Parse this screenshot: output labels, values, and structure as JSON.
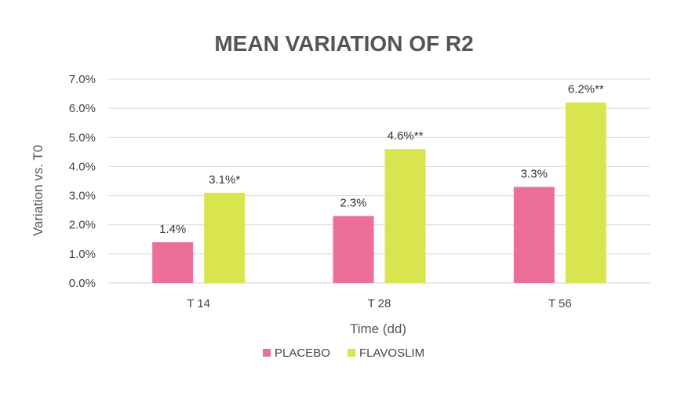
{
  "chart_data": {
    "type": "bar",
    "title": "MEAN VARIATION OF R2",
    "xlabel": "Time (dd)",
    "ylabel": "Variation vs. T0",
    "categories": [
      "T 14",
      "T 28",
      "T 56"
    ],
    "series": [
      {
        "name": "PLACEBO",
        "color": "#ec6f98",
        "values": [
          1.4,
          2.3,
          3.3
        ],
        "labels": [
          "1.4%",
          "2.3%",
          "3.3%"
        ]
      },
      {
        "name": "FLAVOSLIM",
        "color": "#d8e54f",
        "values": [
          3.1,
          4.6,
          6.2
        ],
        "labels": [
          "3.1%*",
          "4.6%**",
          "6.2%**"
        ]
      }
    ],
    "ylim": [
      0,
      7
    ],
    "yticks": [
      0,
      1,
      2,
      3,
      4,
      5,
      6,
      7
    ],
    "ytick_labels": [
      "0.0%",
      "1.0%",
      "2.0%",
      "3.0%",
      "4.0%",
      "5.0%",
      "6.0%",
      "7.0%"
    ],
    "grid": true,
    "legend_position": "bottom"
  }
}
